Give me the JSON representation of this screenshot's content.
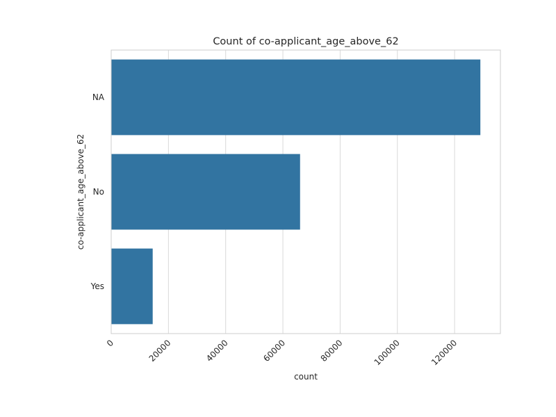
{
  "chart_data": {
    "type": "bar",
    "orientation": "horizontal",
    "title": "Count of co-applicant_age_above_62",
    "xlabel": "count",
    "ylabel": "co-applicant_age_above_62",
    "categories": [
      "NA",
      "No",
      "Yes"
    ],
    "values": [
      129000,
      66000,
      14500
    ],
    "xlim": [
      0,
      136000
    ],
    "xticks": [
      "0",
      "20000",
      "40000",
      "60000",
      "80000",
      "100000",
      "120000"
    ],
    "grid": true,
    "bar_color": "#3274a1"
  }
}
